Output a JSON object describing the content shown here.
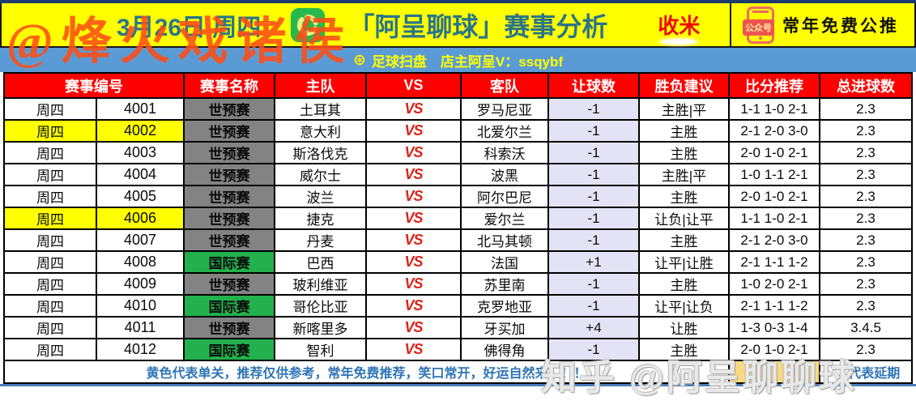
{
  "watermarks": {
    "top_left": "@烽火戏诸侯",
    "bottom_right": "知乎 @阿呈聊聊球"
  },
  "banner": {
    "date": "3月26日 周四",
    "title": "「阿呈聊球」赛事分析",
    "badge": "收米",
    "public_account_label": "公众号",
    "public_account_text": "常年免费公推"
  },
  "subheader": {
    "football_icon": "⊛",
    "text": "足球扫盘　店主阿呈V：ssqybf"
  },
  "table": {
    "day_label": "周四",
    "vs_label": "VS",
    "headers": {
      "match_no": "赛事编号",
      "competition": "赛事名称",
      "home": "主队",
      "vs": "VS",
      "away": "客队",
      "handicap": "让球数",
      "advice": "胜负建议",
      "score": "比分推荐",
      "total_goals": "总进球数"
    },
    "rows": [
      {
        "id": "4001",
        "competition": "世预赛",
        "comp_color": "gray",
        "home": "土耳其",
        "away": "罗马尼亚",
        "handicap": "-1",
        "advice": "主胜|平",
        "score": "1-1 1-0 2-1",
        "total_goals": "2.3",
        "highlight": false
      },
      {
        "id": "4002",
        "competition": "世预赛",
        "comp_color": "gray",
        "home": "意大利",
        "away": "北爱尔兰",
        "handicap": "-1",
        "advice": "主胜",
        "score": "2-1 2-0 3-0",
        "total_goals": "2.3",
        "highlight": true
      },
      {
        "id": "4003",
        "competition": "世预赛",
        "comp_color": "gray",
        "home": "斯洛伐克",
        "away": "科索沃",
        "handicap": "-1",
        "advice": "主胜",
        "score": "2-0 1-0 2-1",
        "total_goals": "2.3",
        "highlight": false
      },
      {
        "id": "4004",
        "competition": "世预赛",
        "comp_color": "gray",
        "home": "威尔士",
        "away": "波黑",
        "handicap": "-1",
        "advice": "主胜|平",
        "score": "1-0 1-1 2-1",
        "total_goals": "2.3",
        "highlight": false
      },
      {
        "id": "4005",
        "competition": "世预赛",
        "comp_color": "gray",
        "home": "波兰",
        "away": "阿尔巴尼",
        "handicap": "-1",
        "advice": "主胜",
        "score": "2-0 1-0 2-1",
        "total_goals": "2.3",
        "highlight": false
      },
      {
        "id": "4006",
        "competition": "世预赛",
        "comp_color": "gray",
        "home": "捷克",
        "away": "爱尔兰",
        "handicap": "-1",
        "advice": "让负|让平",
        "score": "1-1 1-0 2-1",
        "total_goals": "2.3",
        "highlight": true
      },
      {
        "id": "4007",
        "competition": "世预赛",
        "comp_color": "gray",
        "home": "丹麦",
        "away": "北马其顿",
        "handicap": "-1",
        "advice": "主胜",
        "score": "2-1 2-0 3-0",
        "total_goals": "2.3",
        "highlight": false
      },
      {
        "id": "4008",
        "competition": "国际赛",
        "comp_color": "green",
        "home": "巴西",
        "away": "法国",
        "handicap": "+1",
        "advice": "让平|让胜",
        "score": "2-1 1-1 1-2",
        "total_goals": "2.3",
        "highlight": false
      },
      {
        "id": "4009",
        "competition": "世预赛",
        "comp_color": "gray",
        "home": "玻利维亚",
        "away": "苏里南",
        "handicap": "-1",
        "advice": "主胜",
        "score": "1-0 2-0 2-1",
        "total_goals": "2.3",
        "highlight": false
      },
      {
        "id": "4010",
        "competition": "国际赛",
        "comp_color": "green",
        "home": "哥伦比亚",
        "away": "克罗地亚",
        "handicap": "-1",
        "advice": "让平|让负",
        "score": "2-1 1-1 1-2",
        "total_goals": "2.3",
        "highlight": false
      },
      {
        "id": "4011",
        "competition": "世预赛",
        "comp_color": "gray",
        "home": "新喀里多",
        "away": "牙买加",
        "handicap": "+4",
        "advice": "让胜",
        "score": "1-3 0-3 1-4",
        "total_goals": "3.4.5",
        "highlight": false
      },
      {
        "id": "4012",
        "competition": "国际赛",
        "comp_color": "green",
        "home": "智利",
        "away": "佛得角",
        "handicap": "-1",
        "advice": "主胜",
        "score": "2-0 1-0 2-1",
        "total_goals": "2.3",
        "highlight": false
      }
    ]
  },
  "footer": {
    "note": "黄色代表单关，推荐仅供参考，常年免费推荐，笑口常开，好运自然来！！！",
    "postponed": "← 代表延期"
  },
  "colors": {
    "banner_bg": "#ffff00",
    "subbar_bg": "#5b9bd5",
    "header_bg": "#fe0000",
    "world_cup_qualifier_bg": "#838383",
    "international_bg": "#22b14c",
    "handicap_bg": "#e3e3f5",
    "highlight_bg": "#ffff00",
    "postponed_swatch_bg": "#fbd97f",
    "footer_text": "#2e74b5",
    "title_text": "#2b7589",
    "badge_text": "#f00505",
    "watermark_top": "#ff4e16"
  }
}
